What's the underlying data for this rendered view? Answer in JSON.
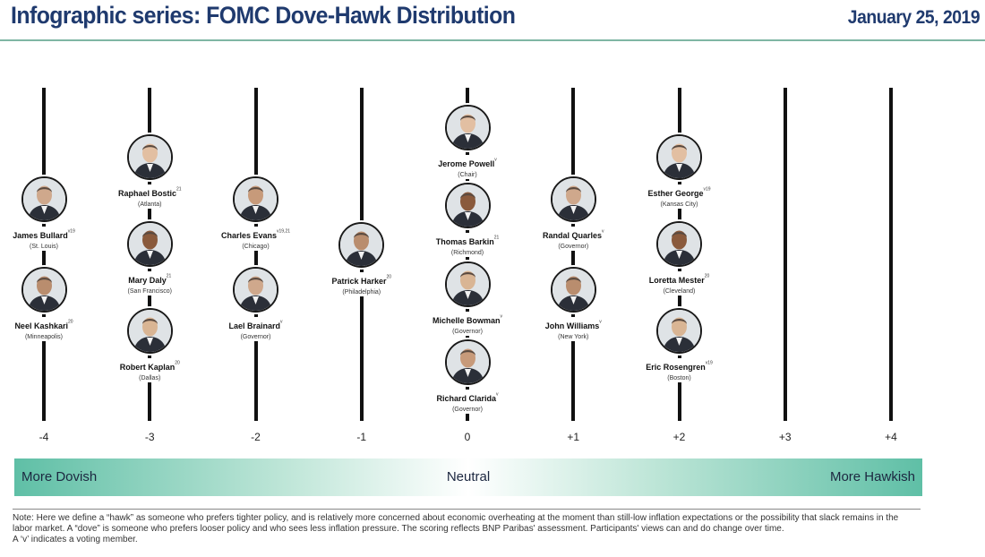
{
  "header": {
    "title": "Infographic series: FOMC Dove-Hawk Distribution",
    "date": "January 25, 2019"
  },
  "chart_data": {
    "type": "scatter",
    "title": "Infographic series: FOMC Dove-Hawk Distribution",
    "x_ticks": [
      "-4",
      "-3",
      "-2",
      "-1",
      "0",
      "+1",
      "+2",
      "+3",
      "+4"
    ],
    "x_values": [
      -4,
      -3,
      -2,
      -1,
      0,
      1,
      2,
      3,
      4
    ],
    "xlim": [
      -4,
      4
    ],
    "members": [
      {
        "name": "James Bullard",
        "sup": "v19",
        "region": "(St. Louis)",
        "x": -4
      },
      {
        "name": "Neel Kashkari",
        "sup": "20",
        "region": "(Minneapolis)",
        "x": -4
      },
      {
        "name": "Raphael Bostic",
        "sup": "21",
        "region": "(Atlanta)",
        "x": -3
      },
      {
        "name": "Mary Daly",
        "sup": "21",
        "region": "(San Francisco)",
        "x": -3
      },
      {
        "name": "Robert Kaplan",
        "sup": "20",
        "region": "(Dallas)",
        "x": -3
      },
      {
        "name": "Charles Evans",
        "sup": "v19,21",
        "region": "(Chicago)",
        "x": -2
      },
      {
        "name": "Lael Brainard",
        "sup": "v",
        "region": "(Governor)",
        "x": -2
      },
      {
        "name": "Patrick Harker",
        "sup": "20",
        "region": "(Philadelphia)",
        "x": -1
      },
      {
        "name": "Jerome Powell",
        "sup": "v",
        "region": "(Chair)",
        "x": 0
      },
      {
        "name": "Thomas Barkin",
        "sup": "21",
        "region": "(Richmond)",
        "x": 0
      },
      {
        "name": "Michelle Bowman",
        "sup": "v",
        "region": "(Governor)",
        "x": 0
      },
      {
        "name": "Richard Clarida",
        "sup": "v",
        "region": "(Governor)",
        "x": 0
      },
      {
        "name": "Randal Quarles",
        "sup": "v",
        "region": "(Governor)",
        "x": 1
      },
      {
        "name": "John Williams",
        "sup": "v",
        "region": "(New York)",
        "x": 1
      },
      {
        "name": "Esther George",
        "sup": "v19",
        "region": "(Kansas City)",
        "x": 2
      },
      {
        "name": "Loretta Mester",
        "sup": "20",
        "region": "(Cleveland)",
        "x": 2
      },
      {
        "name": "Eric Rosengren",
        "sup": "v19",
        "region": "(Boston)",
        "x": 2
      }
    ]
  },
  "scale_bar": {
    "left_label": "More Dovish",
    "center_label": "Neutral",
    "right_label": "More Hawkish"
  },
  "footnote": {
    "text": "Note: Here we define a “hawk” as someone who prefers tighter policy, and is relatively more concerned about economic overheating at the moment than still-low inflation expectations or the possibility that slack remains in the labor market. A “dove” is someone who prefers looser policy and who sees less inflation pressure. The scoring reflects BNP Paribas' assessment. Participants' views can and do change over time.",
    "text2": "A ‘v’ indicates a voting member."
  },
  "colors": {
    "title": "#1f3a6e",
    "rule": "#7fb6a4",
    "gradient_edge": "#5fbfa6",
    "gradient_center": "#ffffff",
    "axis": "#111111"
  }
}
